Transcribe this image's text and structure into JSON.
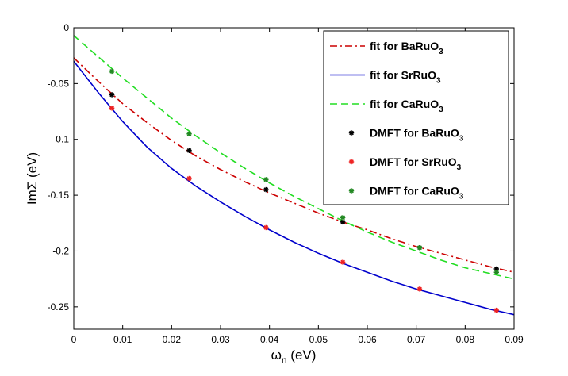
{
  "chart_data": {
    "type": "line",
    "title": "",
    "xlabel": "ω",
    "xlabel_sub": "n",
    "xlabel_unit": " (eV)",
    "ylabel": "ImΣ (eV)",
    "xlim": [
      0,
      0.09
    ],
    "ylim": [
      -0.27,
      0
    ],
    "xticks": [
      0,
      0.01,
      0.02,
      0.03,
      0.04,
      0.05,
      0.06,
      0.07,
      0.08,
      0.09
    ],
    "xtick_labels": [
      "0",
      "0.01",
      "0.02",
      "0.03",
      "0.04",
      "0.05",
      "0.06",
      "0.07",
      "0.08",
      "0.09"
    ],
    "yticks": [
      0,
      -0.05,
      -0.1,
      -0.15,
      -0.2,
      -0.25
    ],
    "ytick_labels": [
      "0",
      "-0.05",
      "-0.1",
      "-0.15",
      "-0.2",
      "-0.25"
    ],
    "grid": false,
    "legend_position": "top-right",
    "series": [
      {
        "name": "fit for BaRuO",
        "name_sub": "3",
        "style": "dashdot",
        "color": "#cc0000",
        "x": [
          0,
          0.005,
          0.01,
          0.015,
          0.02,
          0.025,
          0.03,
          0.035,
          0.04,
          0.045,
          0.05,
          0.055,
          0.06,
          0.065,
          0.07,
          0.075,
          0.08,
          0.085,
          0.09
        ],
        "y": [
          -0.027,
          -0.048,
          -0.068,
          -0.085,
          -0.101,
          -0.115,
          -0.127,
          -0.138,
          -0.148,
          -0.157,
          -0.166,
          -0.174,
          -0.181,
          -0.189,
          -0.196,
          -0.202,
          -0.208,
          -0.214,
          -0.219
        ]
      },
      {
        "name": "fit for SrRuO",
        "name_sub": "3",
        "style": "solid",
        "color": "#0000cc",
        "x": [
          0,
          0.005,
          0.01,
          0.015,
          0.02,
          0.025,
          0.03,
          0.035,
          0.04,
          0.045,
          0.05,
          0.055,
          0.06,
          0.065,
          0.07,
          0.075,
          0.08,
          0.085,
          0.09
        ],
        "y": [
          -0.03,
          -0.058,
          -0.084,
          -0.107,
          -0.126,
          -0.142,
          -0.156,
          -0.169,
          -0.181,
          -0.192,
          -0.202,
          -0.211,
          -0.219,
          -0.227,
          -0.234,
          -0.24,
          -0.246,
          -0.252,
          -0.257
        ]
      },
      {
        "name": "fit for CaRuO",
        "name_sub": "3",
        "style": "dashed",
        "color": "#22dd22",
        "x": [
          0,
          0.005,
          0.01,
          0.015,
          0.02,
          0.025,
          0.03,
          0.035,
          0.04,
          0.045,
          0.05,
          0.055,
          0.06,
          0.065,
          0.07,
          0.075,
          0.08,
          0.085,
          0.09
        ],
        "y": [
          -0.007,
          -0.026,
          -0.045,
          -0.063,
          -0.081,
          -0.097,
          -0.112,
          -0.126,
          -0.139,
          -0.151,
          -0.162,
          -0.173,
          -0.183,
          -0.192,
          -0.2,
          -0.208,
          -0.215,
          -0.22,
          -0.225
        ]
      },
      {
        "name": "DMFT for BaRuO",
        "name_sub": "3",
        "style": "marker",
        "color": "#000000",
        "x": [
          0.0078,
          0.0236,
          0.0393,
          0.055,
          0.0707,
          0.0864
        ],
        "y": [
          -0.06,
          -0.11,
          -0.145,
          -0.174,
          -0.197,
          -0.216
        ]
      },
      {
        "name": "DMFT for SrRuO",
        "name_sub": "3",
        "style": "marker",
        "color": "#ee2222",
        "x": [
          0.0078,
          0.0236,
          0.0393,
          0.055,
          0.0707,
          0.0864
        ],
        "y": [
          -0.072,
          -0.135,
          -0.179,
          -0.21,
          -0.234,
          -0.253
        ]
      },
      {
        "name": "DMFT for CaRuO",
        "name_sub": "3",
        "style": "marker",
        "color": "#228822",
        "x": [
          0.0078,
          0.0236,
          0.0393,
          0.055,
          0.0707,
          0.0864
        ],
        "y": [
          -0.039,
          -0.095,
          -0.136,
          -0.17,
          -0.197,
          -0.219
        ]
      }
    ]
  }
}
